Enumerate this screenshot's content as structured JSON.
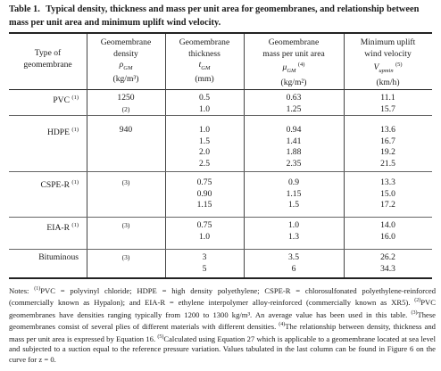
{
  "table": {
    "label": "Table 1.",
    "title": "Typical density, thickness and mass per unit area for geomembranes, and relationship between mass per unit area and minimum uplift wind velocity.",
    "headers": [
      {
        "line1": "Type of",
        "line2": "geomembrane",
        "sym": "",
        "sub": "",
        "sup": "",
        "unit": ""
      },
      {
        "line1": "Geomembrane",
        "line2": "density",
        "sym": "ρ",
        "sub": "GM",
        "sup": "",
        "unit": "(kg/m³)"
      },
      {
        "line1": "Geomembrane",
        "line2": "thickness",
        "sym": "t",
        "sub": "GM",
        "sup": "",
        "unit": "(mm)"
      },
      {
        "line1": "Geomembrane",
        "line2": "mass per unit area",
        "sym": "μ",
        "sub": "GM",
        "sup": "(4)",
        "unit": "(kg/m²)"
      },
      {
        "line1": "Minimum uplift",
        "line2": "wind velocity",
        "sym": "V",
        "sub": "upmin",
        "sup": "(5)",
        "unit": "(km/h)"
      }
    ],
    "rows": [
      {
        "type": "PVC",
        "ref": "(1)",
        "density": "1250",
        "density2": "(2)",
        "thickness": [
          "0.5",
          "1.0"
        ],
        "mass": [
          "0.63",
          "1.25"
        ],
        "velocity": [
          "11.1",
          "15.7"
        ]
      },
      {
        "type": "HDPE",
        "ref": "(1)",
        "density": "940",
        "density2": "",
        "thickness": [
          "1.0",
          "1.5",
          "2.0",
          "2.5"
        ],
        "mass": [
          "0.94",
          "1.41",
          "1.88",
          "2.35"
        ],
        "velocity": [
          "13.6",
          "16.7",
          "19.2",
          "21.5"
        ]
      },
      {
        "type": "CSPE-R",
        "ref": "(1)",
        "density": "(3)",
        "density2": "",
        "thickness": [
          "0.75",
          "0.90",
          "1.15"
        ],
        "mass": [
          "0.9",
          "1.15",
          "1.5"
        ],
        "velocity": [
          "13.3",
          "15.0",
          "17.2"
        ]
      },
      {
        "type": "EIA-R",
        "ref": "(1)",
        "density": "(3)",
        "density2": "",
        "thickness": [
          "0.75",
          "1.0"
        ],
        "mass": [
          "1.0",
          "1.3"
        ],
        "velocity": [
          "14.0",
          "16.0"
        ]
      },
      {
        "type": "Bituminous",
        "ref": "",
        "density": "(3)",
        "density2": "",
        "thickness": [
          "3",
          "5"
        ],
        "mass": [
          "3.5",
          "6"
        ],
        "velocity": [
          "26.2",
          "34.3"
        ]
      }
    ]
  },
  "notes": {
    "prefix": "Notes:",
    "n1_marker": "(1)",
    "n1": "PVC = polyvinyl chloride; HDPE = high density polyethylene; CSPE-R = chlorosulfonated polyethylene-reinforced (commercially known as Hypalon); and EIA-R = ethylene interpolymer alloy-reinforced (commercially known as XR5).",
    "n2_marker": "(2)",
    "n2": "PVC geomembranes have densities ranging typically from 1200 to 1300 kg/m³. An average value has been used in this table.",
    "n3_marker": "(3)",
    "n3": "These geomembranes consist of several plies of different materials with different densities.",
    "n4_marker": "(4)",
    "n4": "The relationship between density, thickness and mass per unit area is expressed by Equation 16.",
    "n5_marker": "(5)",
    "n5": "Calculated using Equation 27 which is applicable to a geomembrane located at sea level and subjected to a suction equal to the reference pressure variation. Values tabulated in the last column can be found in Figure 6 on the curve for z = 0."
  }
}
